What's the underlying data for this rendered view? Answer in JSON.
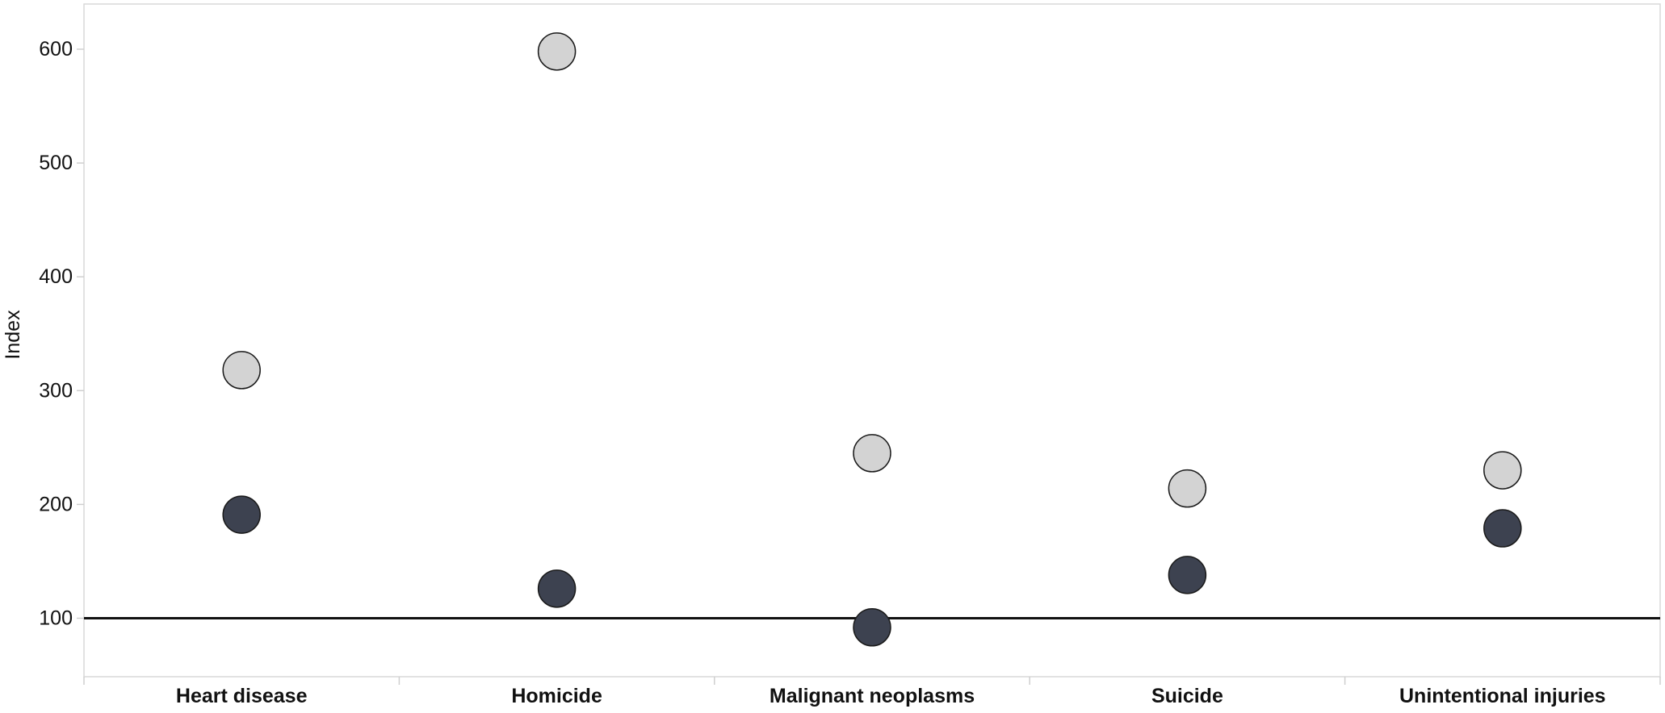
{
  "chart_data": {
    "type": "scatter",
    "title": "",
    "xlabel": "",
    "ylabel": "Index",
    "categories": [
      "Heart disease",
      "Homicide",
      "Malignant neoplasms",
      "Suicide",
      "Unintentional injuries"
    ],
    "series": [
      {
        "color": "#d3d3d3",
        "values": [
          318,
          598,
          245,
          214,
          230
        ]
      },
      {
        "color": "#3d4250",
        "values": [
          191,
          126,
          92,
          138,
          179
        ]
      }
    ],
    "reference_line": {
      "y": 100,
      "color": "#111111"
    },
    "yticks": [
      100,
      200,
      300,
      400,
      500,
      600
    ],
    "ylim": [
      50,
      640
    ],
    "grid": false,
    "legend": "none"
  }
}
